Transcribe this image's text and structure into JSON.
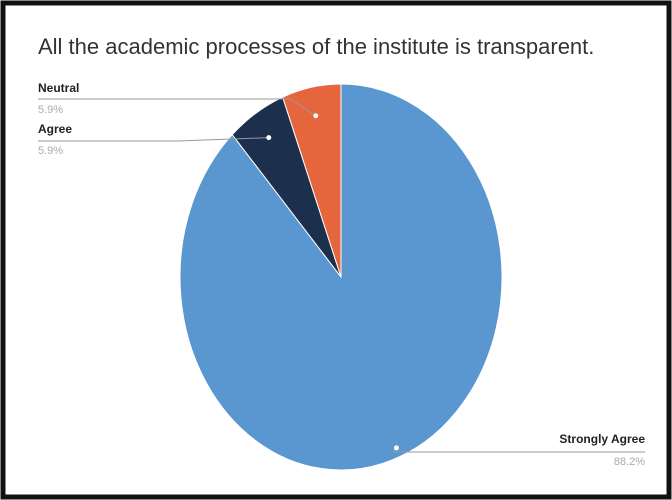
{
  "chart_data": {
    "type": "pie",
    "title": "All the academic processes of the institute is transparent.",
    "categories": [
      "Strongly Agree",
      "Agree",
      "Neutral"
    ],
    "values": [
      88.2,
      5.9,
      5.9
    ],
    "value_labels": [
      "88.2%",
      "5.9%",
      "5.9%"
    ],
    "colors": [
      "#5a96cf",
      "#1c2f4d",
      "#e5663d"
    ]
  }
}
